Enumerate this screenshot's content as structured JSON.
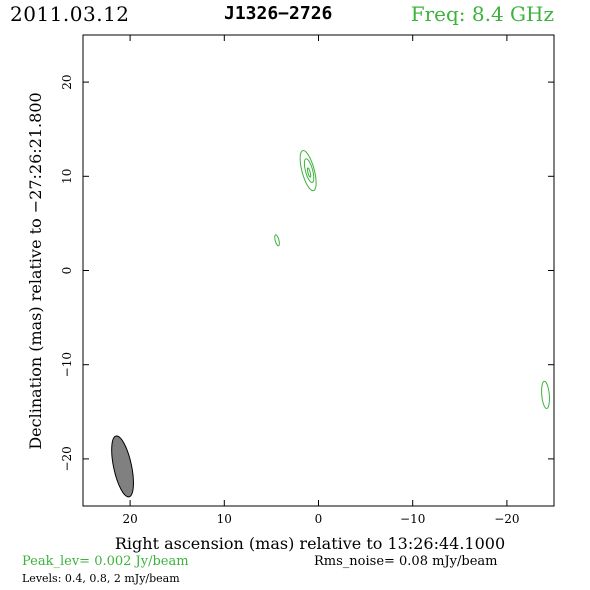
{
  "header": {
    "date": "2011.03.12",
    "source": "J1326−2726",
    "freq": "Freq:  8.4  GHz"
  },
  "colors": {
    "contour": "#3cb33c",
    "beam": "#808080",
    "axes": "#000000"
  },
  "footer": {
    "peak": "Peak_lev=  0.002 Jy/beam",
    "rms": "Rms_noise= 0.08 mJy/beam",
    "levels": "Levels: 0.4, 0.8,    2 mJy/beam"
  },
  "chart_data": {
    "type": "contour",
    "xlabel": "Right ascension (mas) relative to 13:26:44.1000",
    "ylabel": "Declination (mas) relative to −27:26:21.800",
    "xlim": [
      25,
      -25
    ],
    "ylim": [
      -25,
      25
    ],
    "xticks": [
      20,
      10,
      0,
      -10,
      -20
    ],
    "yticks": [
      20,
      10,
      0,
      -10,
      -20
    ],
    "xtick_labels": [
      "20",
      "10",
      "0",
      "−10",
      "−20"
    ],
    "ytick_labels": [
      "20",
      "10",
      "0",
      "−10",
      "−20"
    ],
    "contour_levels_mJy_per_beam": [
      0.4,
      0.8,
      2
    ],
    "contours": [
      {
        "x": 1.1,
        "y": 10.6,
        "rx": 0.65,
        "ry": 2.2,
        "angle": -15,
        "level": 0.4
      },
      {
        "x": 1.0,
        "y": 10.6,
        "rx": 0.38,
        "ry": 1.3,
        "angle": -15,
        "level": 0.8
      },
      {
        "x": 1.0,
        "y": 10.4,
        "rx": 0.12,
        "ry": 0.5,
        "angle": -15,
        "level": 2
      },
      {
        "x": 4.4,
        "y": 3.2,
        "rx": 0.2,
        "ry": 0.6,
        "angle": -15,
        "level": 0.4
      },
      {
        "x": -24.1,
        "y": -13.2,
        "rx": 0.4,
        "ry": 1.45,
        "angle": -5,
        "level": 0.4
      }
    ],
    "beam": {
      "x": 20.8,
      "y": -20.8,
      "rx": 0.95,
      "ry": 3.3,
      "angle": -12
    }
  }
}
